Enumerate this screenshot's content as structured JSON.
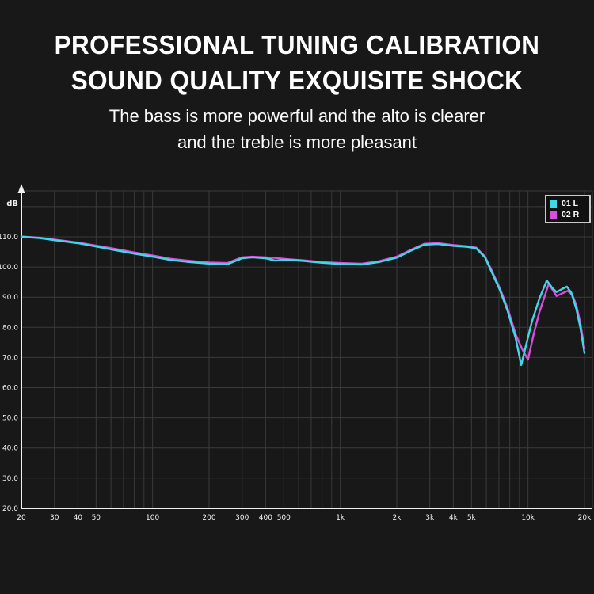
{
  "header": {
    "title_line1": "PROFESSIONAL TUNING CALIBRATION",
    "title_line2": "SOUND QUALITY EXQUISITE SHOCK",
    "subtitle_line1": "The bass is more powerful and the alto is clearer",
    "subtitle_line2": "and the treble is more pleasant"
  },
  "colors": {
    "background": "#181818",
    "grid": "#3a3a3a",
    "axis": "#f0f0f0",
    "tick_text": "#f2f2f2",
    "series_left": "#3fd8e6",
    "series_right": "#d74fdb"
  },
  "chart_data": {
    "type": "line",
    "title": "",
    "x_scale": "log",
    "x_range_hz": [
      20,
      20000
    ],
    "y_range_db": [
      20,
      125
    ],
    "y_axis_unit": "dB",
    "grid": true,
    "legend_position": "top-right",
    "y_ticks": [
      {
        "db": 110,
        "label": "110.0"
      },
      {
        "db": 100,
        "label": "100.0"
      },
      {
        "db": 90,
        "label": "90.0"
      },
      {
        "db": 80,
        "label": "80.0"
      },
      {
        "db": 70,
        "label": "70.0"
      },
      {
        "db": 60,
        "label": "60.0"
      },
      {
        "db": 50,
        "label": "50.0"
      },
      {
        "db": 40,
        "label": "40.0"
      },
      {
        "db": 30,
        "label": "30.0"
      },
      {
        "db": 20,
        "label": "20.0"
      }
    ],
    "x_ticks": [
      {
        "f": 20,
        "label": "20"
      },
      {
        "f": 30,
        "label": "30"
      },
      {
        "f": 40,
        "label": "40"
      },
      {
        "f": 50,
        "label": "50"
      },
      {
        "f": 100,
        "label": "100"
      },
      {
        "f": 200,
        "label": "200"
      },
      {
        "f": 300,
        "label": "300"
      },
      {
        "f": 400,
        "label": "400"
      },
      {
        "f": 500,
        "label": "500"
      },
      {
        "f": 1000,
        "label": "1k"
      },
      {
        "f": 2000,
        "label": "2k"
      },
      {
        "f": 3000,
        "label": "3k"
      },
      {
        "f": 4000,
        "label": "4k"
      },
      {
        "f": 5000,
        "label": "5k"
      },
      {
        "f": 10000,
        "label": "10k"
      },
      {
        "f": 20000,
        "label": "20k"
      }
    ],
    "grid_freqs": [
      20,
      30,
      40,
      50,
      60,
      70,
      80,
      90,
      100,
      200,
      300,
      400,
      500,
      600,
      700,
      800,
      900,
      1000,
      2000,
      3000,
      4000,
      5000,
      6000,
      7000,
      8000,
      9000,
      10000,
      20000
    ],
    "legend": [
      {
        "label": "01 L",
        "color": "#3fd8e6"
      },
      {
        "label": "02 R",
        "color": "#d74fdb"
      }
    ],
    "series": [
      {
        "name": "01 L",
        "color": "#3fd8e6",
        "points": [
          [
            20,
            110.0
          ],
          [
            25,
            109.6
          ],
          [
            30,
            108.9
          ],
          [
            40,
            107.9
          ],
          [
            50,
            106.8
          ],
          [
            63,
            105.6
          ],
          [
            80,
            104.4
          ],
          [
            100,
            103.4
          ],
          [
            125,
            102.3
          ],
          [
            160,
            101.6
          ],
          [
            200,
            101.1
          ],
          [
            250,
            100.9
          ],
          [
            300,
            102.9
          ],
          [
            340,
            103.2
          ],
          [
            400,
            102.9
          ],
          [
            450,
            102.1
          ],
          [
            520,
            102.4
          ],
          [
            640,
            102.0
          ],
          [
            800,
            101.4
          ],
          [
            1000,
            101.0
          ],
          [
            1300,
            100.8
          ],
          [
            1600,
            101.6
          ],
          [
            2000,
            103.1
          ],
          [
            2400,
            105.5
          ],
          [
            2800,
            107.4
          ],
          [
            3300,
            107.6
          ],
          [
            4000,
            107.0
          ],
          [
            4700,
            106.7
          ],
          [
            5300,
            106.2
          ],
          [
            5900,
            103.2
          ],
          [
            6400,
            98.4
          ],
          [
            7100,
            92.2
          ],
          [
            7800,
            85.3
          ],
          [
            8600,
            76.4
          ],
          [
            9200,
            67.5
          ],
          [
            9800,
            74.5
          ],
          [
            10500,
            82.0
          ],
          [
            11500,
            89.5
          ],
          [
            12600,
            95.5
          ],
          [
            13500,
            93.0
          ],
          [
            14200,
            91.7
          ],
          [
            15300,
            92.8
          ],
          [
            16100,
            93.5
          ],
          [
            17000,
            91.5
          ],
          [
            18100,
            86.1
          ],
          [
            19000,
            80.0
          ],
          [
            20000,
            71.5
          ]
        ]
      },
      {
        "name": "02 R",
        "color": "#d74fdb",
        "points": [
          [
            20,
            110.1
          ],
          [
            25,
            109.7
          ],
          [
            30,
            109.1
          ],
          [
            40,
            108.1
          ],
          [
            50,
            107.1
          ],
          [
            63,
            106.0
          ],
          [
            80,
            104.8
          ],
          [
            100,
            103.8
          ],
          [
            125,
            102.7
          ],
          [
            160,
            102.0
          ],
          [
            200,
            101.5
          ],
          [
            250,
            101.3
          ],
          [
            300,
            103.2
          ],
          [
            340,
            103.4
          ],
          [
            400,
            103.2
          ],
          [
            450,
            103.0
          ],
          [
            520,
            102.6
          ],
          [
            640,
            102.2
          ],
          [
            800,
            101.6
          ],
          [
            1000,
            101.3
          ],
          [
            1300,
            101.1
          ],
          [
            1600,
            101.9
          ],
          [
            2000,
            103.4
          ],
          [
            2400,
            105.8
          ],
          [
            2800,
            107.7
          ],
          [
            3300,
            107.9
          ],
          [
            4000,
            107.3
          ],
          [
            4700,
            106.9
          ],
          [
            5300,
            106.4
          ],
          [
            5900,
            103.5
          ],
          [
            6400,
            98.9
          ],
          [
            7100,
            92.8
          ],
          [
            7800,
            86.2
          ],
          [
            8600,
            77.7
          ],
          [
            9300,
            72.8
          ],
          [
            10000,
            69.3
          ],
          [
            10700,
            77.5
          ],
          [
            11500,
            85.0
          ],
          [
            12900,
            94.4
          ],
          [
            14200,
            90.4
          ],
          [
            15300,
            91.3
          ],
          [
            16300,
            92.1
          ],
          [
            17200,
            90.8
          ],
          [
            18100,
            87.4
          ],
          [
            19000,
            81.5
          ],
          [
            20000,
            73.0
          ]
        ]
      }
    ]
  }
}
